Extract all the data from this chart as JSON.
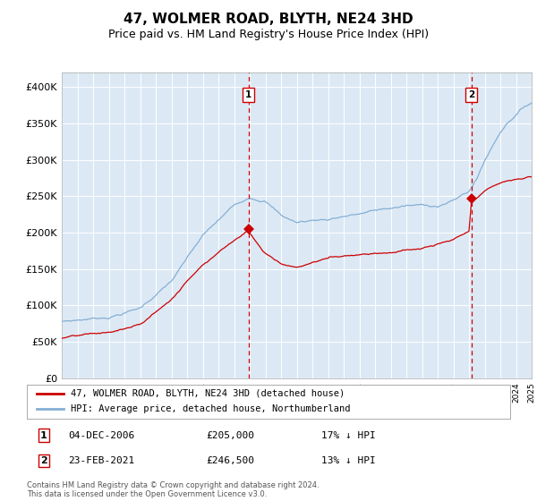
{
  "title": "47, WOLMER ROAD, BLYTH, NE24 3HD",
  "subtitle": "Price paid vs. HM Land Registry's House Price Index (HPI)",
  "ylim": [
    0,
    420000
  ],
  "yticks": [
    0,
    50000,
    100000,
    150000,
    200000,
    250000,
    300000,
    350000,
    400000
  ],
  "ytick_labels": [
    "£0",
    "£50K",
    "£100K",
    "£150K",
    "£200K",
    "£250K",
    "£300K",
    "£350K",
    "£400K"
  ],
  "background_color": "#ffffff",
  "plot_bg_color": "#dce9f5",
  "grid_color": "#ffffff",
  "line1_color": "#cc0000",
  "line2_color": "#85afd4",
  "sale1_month": 143,
  "sale1_value": 205000,
  "sale1_label": "04-DEC-2006",
  "sale1_note": "17% ↓ HPI",
  "sale1_price_str": "£205,000",
  "sale2_month": 314,
  "sale2_value": 246500,
  "sale2_label": "23-FEB-2021",
  "sale2_note": "13% ↓ HPI",
  "sale2_price_str": "£246,500",
  "legend1": "47, WOLMER ROAD, BLYTH, NE24 3HD (detached house)",
  "legend2": "HPI: Average price, detached house, Northumberland",
  "footer": "Contains HM Land Registry data © Crown copyright and database right 2024.\nThis data is licensed under the Open Government Licence v3.0.",
  "title_fontsize": 11,
  "subtitle_fontsize": 9,
  "axis_fontsize": 8,
  "start_year": 1995,
  "n_months": 361
}
